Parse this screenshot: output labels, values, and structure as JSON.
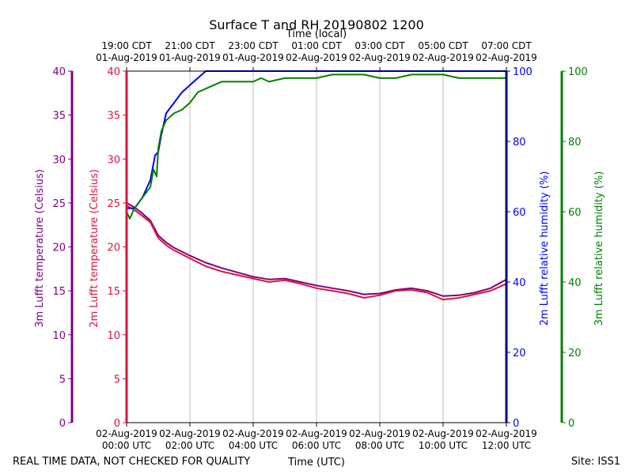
{
  "chart_data": {
    "type": "line",
    "title": "Surface T and RH 20190802 1200",
    "top_xlabel": "Time (local)",
    "xlabel": "Time (UTC)",
    "footer_left": "REAL TIME DATA, NOT CHECKED FOR QUALITY",
    "footer_right": "Site: ISS1",
    "xlim_hours": [
      0,
      12
    ],
    "grid": "vertical",
    "x_ticks_bottom": [
      {
        "hour": 0,
        "line1": "02-Aug-2019",
        "line2": "00:00 UTC"
      },
      {
        "hour": 2,
        "line1": "02-Aug-2019",
        "line2": "02:00 UTC"
      },
      {
        "hour": 4,
        "line1": "02-Aug-2019",
        "line2": "04:00 UTC"
      },
      {
        "hour": 6,
        "line1": "02-Aug-2019",
        "line2": "06:00 UTC"
      },
      {
        "hour": 8,
        "line1": "02-Aug-2019",
        "line2": "08:00 UTC"
      },
      {
        "hour": 10,
        "line1": "02-Aug-2019",
        "line2": "10:00 UTC"
      },
      {
        "hour": 12,
        "line1": "02-Aug-2019",
        "line2": "12:00 UTC"
      }
    ],
    "x_ticks_top": [
      {
        "hour": 0,
        "line1": "19:00 CDT",
        "line2": "01-Aug-2019"
      },
      {
        "hour": 2,
        "line1": "21:00 CDT",
        "line2": "01-Aug-2019"
      },
      {
        "hour": 4,
        "line1": "23:00 CDT",
        "line2": "01-Aug-2019"
      },
      {
        "hour": 6,
        "line1": "01:00 CDT",
        "line2": "02-Aug-2019"
      },
      {
        "hour": 8,
        "line1": "03:00 CDT",
        "line2": "02-Aug-2019"
      },
      {
        "hour": 10,
        "line1": "05:00 CDT",
        "line2": "02-Aug-2019"
      },
      {
        "hour": 12,
        "line1": "07:00 CDT",
        "line2": "02-Aug-2019"
      }
    ],
    "axes": [
      {
        "id": "t3m",
        "label": "3m Lufft temperature (Celsius)",
        "color": "#800080",
        "ylim": [
          0,
          40
        ],
        "ticks": [
          0,
          5,
          10,
          15,
          20,
          25,
          30,
          35,
          40
        ],
        "side": "left-outer"
      },
      {
        "id": "t2m",
        "label": "2m Lufft temperature (Celsius)",
        "color": "#dc143c",
        "ylim": [
          0,
          40
        ],
        "ticks": [
          0,
          5,
          10,
          15,
          20,
          25,
          30,
          35,
          40
        ],
        "side": "left-inner"
      },
      {
        "id": "rh2m",
        "label": "2m Lufft relative humidity (%)",
        "color": "#0000ff",
        "axis_color": "#00008b",
        "ylim": [
          0,
          100
        ],
        "ticks": [
          0,
          20,
          40,
          60,
          80,
          100
        ],
        "side": "right-inner"
      },
      {
        "id": "rh3m",
        "label": "3m Lufft relative humidity (%)",
        "color": "#008000",
        "ylim": [
          0,
          100
        ],
        "ticks": [
          0,
          20,
          40,
          60,
          80,
          100
        ],
        "side": "right-outer"
      }
    ],
    "series": [
      {
        "name": "3m Lufft temperature",
        "axis": "t3m",
        "color": "#800080",
        "x": [
          0,
          0.25,
          0.5,
          0.75,
          1.0,
          1.25,
          1.5,
          2.0,
          2.5,
          3.0,
          3.5,
          4.0,
          4.5,
          5.0,
          5.5,
          6.0,
          6.5,
          7.0,
          7.5,
          8.0,
          8.5,
          9.0,
          9.5,
          10.0,
          10.5,
          11.0,
          11.5,
          12.0
        ],
        "values": [
          25.0,
          24.5,
          23.8,
          23.0,
          21.3,
          20.5,
          19.9,
          19.0,
          18.2,
          17.6,
          17.1,
          16.6,
          16.3,
          16.4,
          16.0,
          15.6,
          15.3,
          15.0,
          14.6,
          14.7,
          15.1,
          15.3,
          15.0,
          14.4,
          14.5,
          14.8,
          15.3,
          16.3
        ]
      },
      {
        "name": "2m Lufft temperature",
        "axis": "t2m",
        "color": "#dc143c",
        "x": [
          0,
          0.25,
          0.5,
          0.75,
          1.0,
          1.25,
          1.5,
          2.0,
          2.5,
          3.0,
          3.5,
          4.0,
          4.5,
          5.0,
          5.5,
          6.0,
          6.5,
          7.0,
          7.5,
          8.0,
          8.5,
          9.0,
          9.5,
          10.0,
          10.5,
          11.0,
          11.5,
          12.0
        ],
        "values": [
          24.7,
          24.2,
          23.5,
          22.8,
          21.0,
          20.2,
          19.6,
          18.7,
          17.8,
          17.2,
          16.8,
          16.4,
          16.0,
          16.2,
          15.8,
          15.3,
          15.0,
          14.7,
          14.2,
          14.5,
          15.0,
          15.1,
          14.8,
          14.0,
          14.2,
          14.6,
          15.0,
          15.8
        ]
      },
      {
        "name": "2m Lufft relative humidity",
        "axis": "rh2m",
        "color": "#0000ff",
        "x": [
          0,
          0.25,
          0.5,
          0.75,
          0.9,
          1.0,
          1.1,
          1.25,
          1.5,
          1.75,
          2.0,
          2.25,
          2.5,
          2.6,
          12.0
        ],
        "values": [
          61,
          61,
          64,
          69,
          76,
          77,
          82,
          88,
          91,
          94,
          96,
          98,
          100,
          100,
          100
        ]
      },
      {
        "name": "3m Lufft relative humidity",
        "axis": "rh3m",
        "color": "#008000",
        "x": [
          0,
          0.1,
          0.25,
          0.5,
          0.75,
          0.85,
          0.95,
          1.0,
          1.1,
          1.25,
          1.5,
          1.75,
          2.0,
          2.25,
          2.5,
          3.0,
          3.5,
          4.0,
          4.25,
          4.5,
          5.0,
          5.5,
          6.0,
          6.5,
          7.0,
          7.5,
          8.0,
          8.5,
          9.0,
          9.5,
          10.0,
          10.5,
          11.0,
          11.5,
          12.0
        ],
        "values": [
          60,
          58,
          61,
          64,
          67,
          72,
          70,
          78,
          83,
          86,
          88,
          89,
          91,
          94,
          95,
          97,
          97,
          97,
          98,
          97,
          98,
          98,
          98,
          99,
          99,
          99,
          98,
          98,
          99,
          99,
          99,
          98,
          98,
          98,
          98
        ]
      }
    ]
  }
}
